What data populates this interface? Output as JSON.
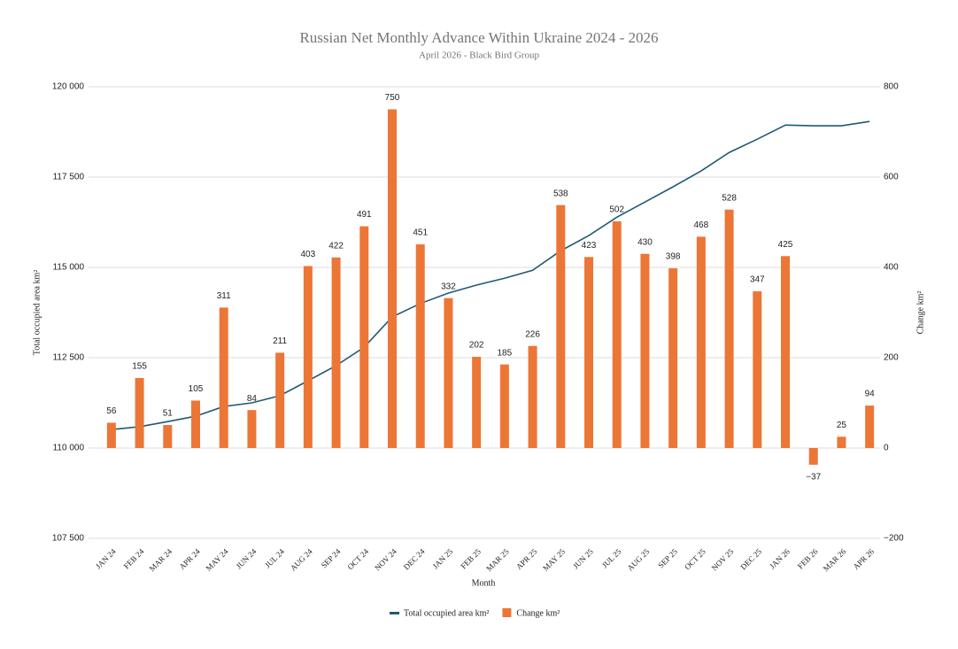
{
  "chart_data": {
    "type": "bar_line",
    "title": "Russian Net Monthly Advance Within Ukraine 2024 - 2026",
    "subtitle": "April 2026 - Black Bird Group",
    "x_label": "Month",
    "y_label": "Total occupied area km²",
    "y2_label": "Change km²",
    "categories": [
      "JAN 24",
      "FEB 24",
      "MAR 24",
      "APR 24",
      "MAY 24",
      "JUN 24",
      "JUL 24",
      "AUG 24",
      "SEP 24",
      "OCT 24",
      "NOV 24",
      "DEC 24",
      "JAN 25",
      "FEB 25",
      "MAR 25",
      "APR 25",
      "MAY 25",
      "JUN 25",
      "JUL 25",
      "AUG 25",
      "SEP 25",
      "OCT 25",
      "NOV 25",
      "DEC 25",
      "JAN 26",
      "FEB 26",
      "MAR 26",
      "APR 26"
    ],
    "series": [
      {
        "name": "Total occupied area km²",
        "type": "line",
        "color": "#1f5a72",
        "values": [
          110510,
          110590,
          110730,
          110880,
          111150,
          111250,
          111450,
          111860,
          112280,
          112790,
          113630,
          114000,
          114290,
          114510,
          114700,
          114920,
          115460,
          115880,
          116390,
          116810,
          117230,
          117670,
          118180,
          118550,
          118940,
          118920,
          118920,
          119040
        ]
      },
      {
        "name": "Change km²",
        "type": "bar",
        "axis": "y2",
        "color": "#ec7636",
        "values": [
          56,
          155,
          51,
          105,
          311,
          84,
          211,
          403,
          422,
          491,
          750,
          451,
          332,
          202,
          185,
          226,
          538,
          423,
          502,
          430,
          398,
          468,
          528,
          347,
          425,
          -37,
          25,
          94
        ],
        "value_labels": [
          "56",
          "155",
          "51",
          "105",
          "311",
          "84",
          "211",
          "403",
          "422",
          "491",
          "750",
          "451",
          "332",
          "202",
          "185",
          "226",
          "538",
          "423",
          "502",
          "430",
          "398",
          "468",
          "528",
          "347",
          "425",
          "−37",
          "25",
          "94"
        ]
      }
    ],
    "ylim": [
      107500,
      120000
    ],
    "yticks": [
      {
        "value": 107500,
        "label": "107 500"
      },
      {
        "value": 110000,
        "label": "110 000"
      },
      {
        "value": 112500,
        "label": "112 500"
      },
      {
        "value": 115000,
        "label": "115 000"
      },
      {
        "value": 117500,
        "label": "117 500"
      },
      {
        "value": 120000,
        "label": "120 000"
      }
    ],
    "y2lim": [
      -200,
      800
    ],
    "y2ticks": [
      {
        "value": -200,
        "label": "−200"
      },
      0,
      200,
      400,
      600,
      800
    ],
    "grid": true,
    "legend": "bottom"
  }
}
